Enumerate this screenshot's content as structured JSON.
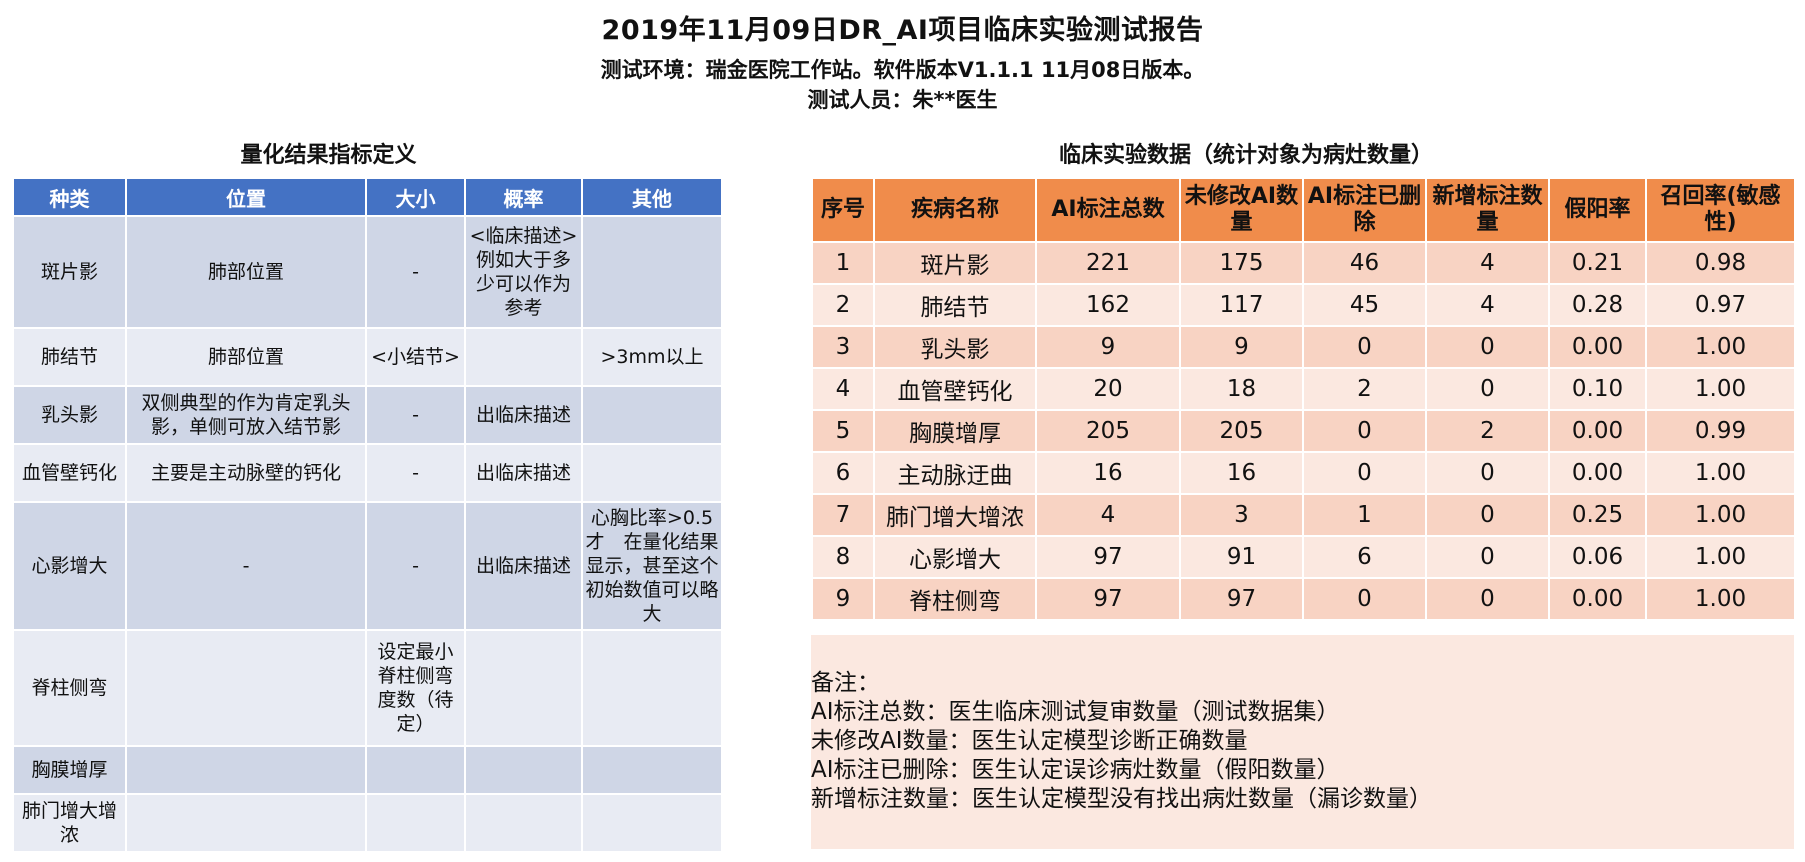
{
  "header": {
    "title": "2019年11月09日DR_AI项目临床实验测试报告",
    "env": "测试环境：瑞金医院工作站。软件版本V1.1.1 11月08日版本。",
    "tester": "测试人员：朱**医生"
  },
  "left": {
    "section_title": "量化结果指标定义",
    "headers": [
      "种类",
      "位置",
      "大小",
      "概率",
      "其他"
    ],
    "rows": [
      [
        "斑片影",
        "肺部位置",
        "-",
        "<临床描述>例如大于多少可以作为参考",
        ""
      ],
      [
        "肺结节",
        "肺部位置",
        "<小结节>",
        "",
        ">3mm以上"
      ],
      [
        "乳头影",
        "双侧典型的作为肯定乳头影，单侧可放入结节影",
        "-",
        "出临床描述",
        ""
      ],
      [
        "血管壁钙化",
        "主要是主动脉壁的钙化",
        "-",
        "出临床描述",
        ""
      ],
      [
        "心影增大",
        "-",
        "-",
        "出临床描述",
        "心胸比率>0.5 才　在量化结果显示，甚至这个初始数值可以略大"
      ],
      [
        "脊柱侧弯",
        "",
        "设定最小脊柱侧弯度数（待定）",
        "",
        ""
      ],
      [
        "胸膜增厚",
        "",
        "",
        "",
        ""
      ],
      [
        "肺门增大增浓",
        "",
        "",
        "",
        ""
      ]
    ]
  },
  "right": {
    "section_title": "临床实验数据（统计对象为病灶数量）",
    "headers": [
      "序号",
      "疾病名称",
      "AI标注总数",
      "未修改AI数量",
      "AI标注已删除",
      "新增标注数量",
      "假阳率",
      "召回率(敏感性)"
    ],
    "rows": [
      [
        "1",
        "斑片影",
        "221",
        "175",
        "46",
        "4",
        "0.21",
        "0.98"
      ],
      [
        "2",
        "肺结节",
        "162",
        "117",
        "45",
        "4",
        "0.28",
        "0.97"
      ],
      [
        "3",
        "乳头影",
        "9",
        "9",
        "0",
        "0",
        "0.00",
        "1.00"
      ],
      [
        "4",
        "血管壁钙化",
        "20",
        "18",
        "2",
        "0",
        "0.10",
        "1.00"
      ],
      [
        "5",
        "胸膜增厚",
        "205",
        "205",
        "0",
        "2",
        "0.00",
        "0.99"
      ],
      [
        "6",
        "主动脉迂曲",
        "16",
        "16",
        "0",
        "0",
        "0.00",
        "1.00"
      ],
      [
        "7",
        "肺门增大增浓",
        "4",
        "3",
        "1",
        "0",
        "0.25",
        "1.00"
      ],
      [
        "8",
        "心影增大",
        "97",
        "91",
        "6",
        "0",
        "0.06",
        "1.00"
      ],
      [
        "9",
        "脊柱侧弯",
        "97",
        "97",
        "0",
        "0",
        "0.00",
        "1.00"
      ]
    ],
    "notes": [
      "备注：",
      "AI标注总数：医生临床测试复审数量（测试数据集）",
      "未修改AI数量：医生认定模型诊断正确数量",
      "AI标注已删除：医生认定误诊病灶数量（假阳数量）",
      "新增标注数量：医生认定模型没有找出病灶数量（漏诊数量）"
    ]
  }
}
